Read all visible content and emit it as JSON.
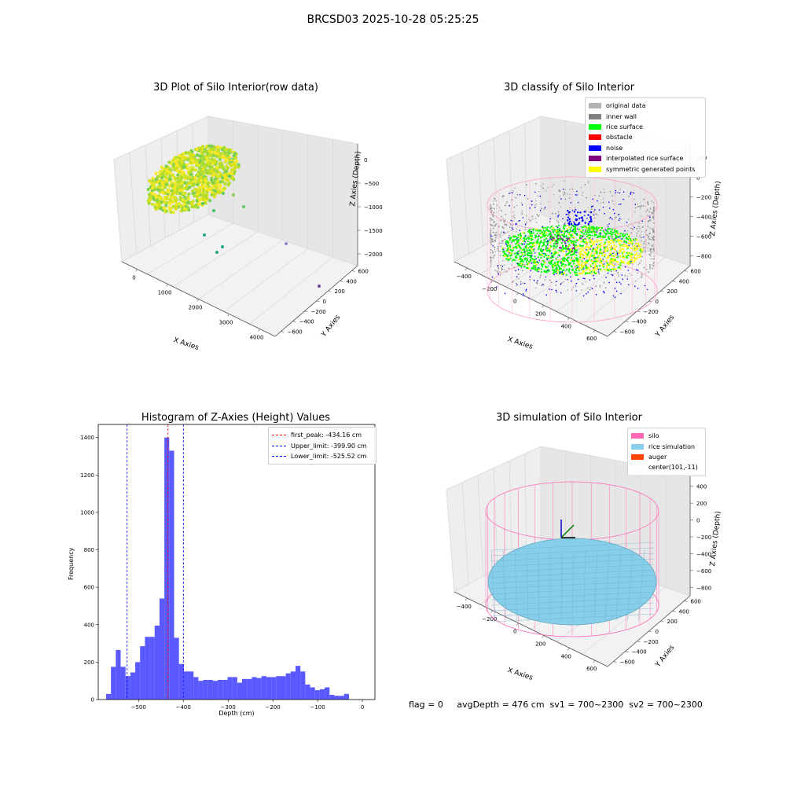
{
  "suptitle": "BRCSD03 2025-10-28 05:25:25",
  "panels": {
    "raw": {
      "title": "3D Plot of Silo Interior(row data)",
      "xlabel": "X Axies",
      "ylabel": "Y Axies",
      "zlabel": "Z Axies (Depth)",
      "xticks": [
        "0",
        "1000",
        "2000",
        "3000",
        "4000"
      ],
      "yticks": [
        "600",
        "400",
        "200",
        "0",
        "−200",
        "−400",
        "−600"
      ],
      "zticks": [
        "0",
        "−500",
        "−1000",
        "−1500",
        "−2000"
      ]
    },
    "classify": {
      "title": "3D classify of Silo Interior",
      "xlabel": "X Axies",
      "ylabel": "Y Axies",
      "zlabel": "Z Axies (Depth)",
      "xticks": [
        "−400",
        "−200",
        "0",
        "200",
        "400",
        "600"
      ],
      "yticks": [
        "600",
        "400",
        "200",
        "0",
        "−200",
        "−400",
        "−600"
      ],
      "zticks": [
        "200",
        "0",
        "−200",
        "−400",
        "−600",
        "−800"
      ]
    },
    "simulation": {
      "title": "3D simulation of Silo Interior",
      "xlabel": "X Axies",
      "ylabel": "Y Axies",
      "zlabel": "Z Axies (Depth)",
      "xticks": [
        "−400",
        "−200",
        "0",
        "200",
        "400",
        "600"
      ],
      "yticks": [
        "600",
        "400",
        "200",
        "0",
        "−200",
        "−400",
        "−600"
      ],
      "zticks": [
        "400",
        "200",
        "0",
        "−200",
        "−400",
        "−600",
        "−800"
      ]
    }
  },
  "legends": {
    "classify": [
      {
        "label": "original data",
        "color": "#b3b3b3"
      },
      {
        "label": "inner wall",
        "color": "#808080"
      },
      {
        "label": "rice surface",
        "color": "#00ff00"
      },
      {
        "label": "obstacle",
        "color": "#ff0000"
      },
      {
        "label": "noise",
        "color": "#0000ff"
      },
      {
        "label": "interpolated rice surface",
        "color": "#800080"
      },
      {
        "label": "symmetric generated points",
        "color": "#ffff00"
      }
    ],
    "simulation": [
      {
        "label": "silo",
        "color": "#ff69b4"
      },
      {
        "label": "rice simulation",
        "color": "#87ceeb"
      },
      {
        "label": "auger",
        "color": "#ff4500"
      },
      {
        "label": "center(101,-11)",
        "color": ""
      }
    ],
    "histogram": [
      {
        "label": "first_peak: -434.16 cm",
        "color": "#ff0000"
      },
      {
        "label": "Upper_limit: -399.90 cm",
        "color": "#0000ff"
      },
      {
        "label": "Lower_limit: -525.52 cm",
        "color": "#0000ff"
      }
    ]
  },
  "chart_data": [
    {
      "type": "scatter",
      "title": "3D Plot of Silo Interior(row data)",
      "xlabel": "X Axies",
      "ylabel": "Y Axies",
      "zlabel": "Z Axies (Depth)",
      "xlim": [
        -500,
        4000
      ],
      "ylim": [
        -600,
        600
      ],
      "zlim": [
        -2200,
        100
      ],
      "colormap": "viridis"
    },
    {
      "type": "scatter",
      "title": "3D classify of Silo Interior",
      "xlabel": "X Axies",
      "ylabel": "Y Axies",
      "zlabel": "Z Axies (Depth)",
      "xlim": [
        -500,
        700
      ],
      "ylim": [
        -600,
        600
      ],
      "zlim": [
        -900,
        300
      ],
      "series": [
        {
          "name": "original data",
          "color": "#b3b3b3"
        },
        {
          "name": "inner wall",
          "color": "#808080"
        },
        {
          "name": "rice surface",
          "color": "#00ff00"
        },
        {
          "name": "obstacle",
          "color": "#ff0000"
        },
        {
          "name": "noise",
          "color": "#0000ff"
        },
        {
          "name": "interpolated rice surface",
          "color": "#800080"
        },
        {
          "name": "symmetric generated points",
          "color": "#ffff00"
        }
      ]
    },
    {
      "type": "bar",
      "title": "Histogram of Z-Axies (Height) Values",
      "xlabel": "Depth (cm)",
      "ylabel": "Frequency",
      "xlim": [
        -590,
        28
      ],
      "ylim": [
        0,
        1470
      ],
      "xticks": [
        -500,
        -400,
        -300,
        -200,
        -100,
        0
      ],
      "yticks": [
        0,
        200,
        400,
        600,
        800,
        1000,
        1200,
        1400
      ],
      "bin_start": -572.5,
      "bin_width": 10.85,
      "values": [
        30,
        175,
        265,
        175,
        125,
        145,
        200,
        285,
        335,
        335,
        395,
        540,
        1400,
        1330,
        330,
        190,
        150,
        150,
        120,
        100,
        105,
        105,
        100,
        105,
        105,
        120,
        120,
        90,
        110,
        110,
        120,
        115,
        125,
        120,
        120,
        125,
        125,
        140,
        150,
        180,
        150,
        80,
        65,
        50,
        55,
        65,
        25,
        20,
        20,
        30
      ],
      "bar_color": "#5050ff",
      "vlines": [
        {
          "name": "first_peak: -434.16 cm",
          "x": -434.16,
          "color": "#ff0000"
        },
        {
          "name": "Upper_limit: -399.90 cm",
          "x": -399.9,
          "color": "#0000ff"
        },
        {
          "name": "Lower_limit: -525.52 cm",
          "x": -525.52,
          "color": "#0000ff"
        }
      ]
    },
    {
      "type": "area",
      "title": "3D simulation of Silo Interior",
      "xlabel": "X Axies",
      "ylabel": "Y Axies",
      "zlabel": "Z Axies (Depth)",
      "xlim": [
        -500,
        700
      ],
      "ylim": [
        -600,
        600
      ],
      "zlim": [
        -900,
        450
      ],
      "center": "center(101,-11)"
    }
  ],
  "histogram": {
    "title": "Histogram of Z-Axies (Height) Values",
    "xlabel": "Depth (cm)",
    "ylabel": "Frequency",
    "xtick_labels": [
      "−500",
      "−400",
      "−300",
      "−200",
      "−100",
      "0"
    ],
    "ytick_labels": [
      "0",
      "200",
      "400",
      "600",
      "800",
      "1000",
      "1200",
      "1400"
    ]
  },
  "footer": "flag = 0     avgDepth = 476 cm  sv1 = 700~2300  sv2 = 700~2300"
}
